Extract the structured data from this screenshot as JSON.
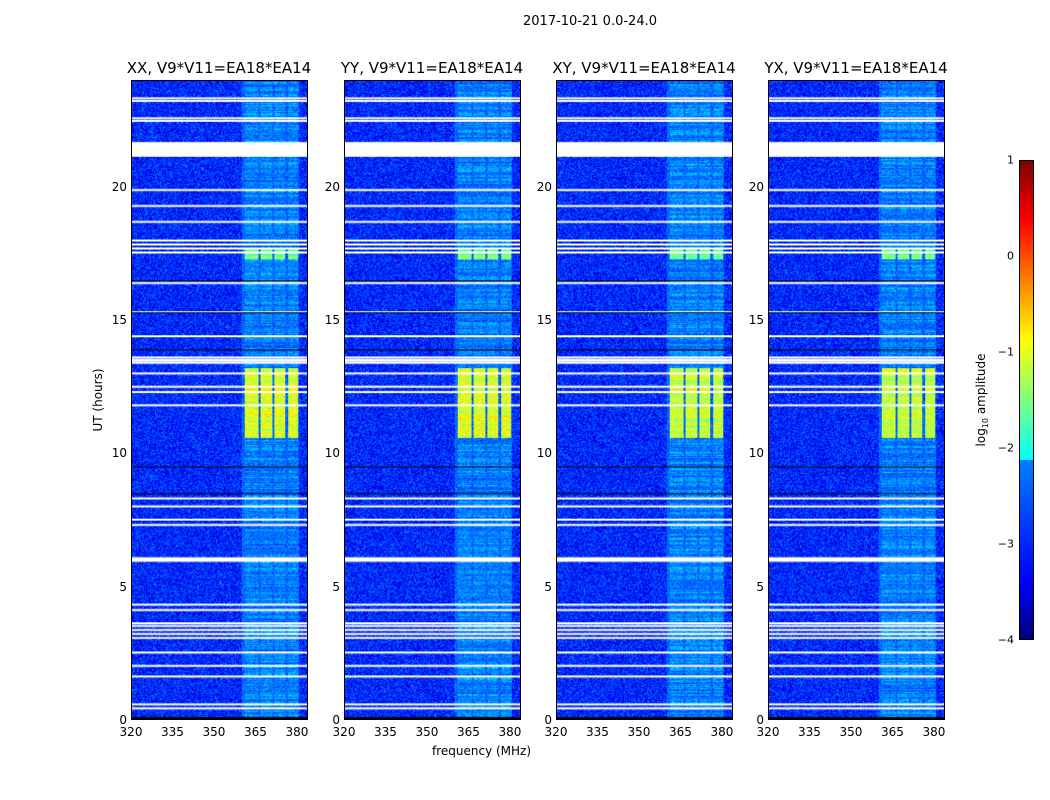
{
  "suptitle": "2017-10-21 0.0-24.0",
  "panels": [
    {
      "title": "XX, V9*V11=EA18*EA14",
      "pol": "XX"
    },
    {
      "title": "YY, V9*V11=EA18*EA14",
      "pol": "YY"
    },
    {
      "title": "XY, V9*V11=EA18*EA14",
      "pol": "XY"
    },
    {
      "title": "YX, V9*V11=EA18*EA14",
      "pol": "YX"
    }
  ],
  "xticks": [
    "320",
    "335",
    "350",
    "365",
    "380"
  ],
  "yticks": [
    "0",
    "5",
    "10",
    "15",
    "20"
  ],
  "xlabel": "frequency (MHz)",
  "ylabel": "UT (hours)",
  "colorbar": {
    "label_prefix": "log",
    "label_sub": "10",
    "label_suffix": " amplitude",
    "ticks": [
      "1",
      "0",
      "−1",
      "−2",
      "−3",
      "−4"
    ]
  },
  "chart_data": {
    "type": "heatmap",
    "title": "2017-10-21 0.0-24.0",
    "xlabel": "frequency (MHz)",
    "ylabel": "UT (hours)",
    "xlim": [
      320,
      384
    ],
    "ylim": [
      0,
      24
    ],
    "clim": [
      -4,
      1
    ],
    "colormap": "jet",
    "background_level": -3.2,
    "signal_bands_mhz": [
      [
        361,
        366
      ],
      [
        367,
        371
      ],
      [
        372,
        376
      ],
      [
        377,
        380.5
      ]
    ],
    "elevated_periods_hours": [
      [
        10.6,
        13.2,
        -1.3
      ],
      [
        17.3,
        17.7,
        -1.8
      ]
    ],
    "flagged_hours": [
      0.4,
      0.55,
      1.6,
      2.0,
      2.5,
      3.05,
      3.2,
      3.35,
      3.5,
      3.6,
      4.1,
      4.3,
      5.95,
      6.05,
      7.3,
      7.5,
      8.0,
      8.3,
      11.8,
      12.3,
      12.5,
      13.0,
      13.4,
      13.5,
      13.6,
      14.4,
      15.3,
      16.4,
      17.55,
      17.7,
      17.85,
      18.0,
      18.7,
      19.3,
      19.9,
      21.2,
      21.35,
      21.5,
      21.65,
      22.5,
      22.6,
      23.25,
      23.35
    ]
  }
}
